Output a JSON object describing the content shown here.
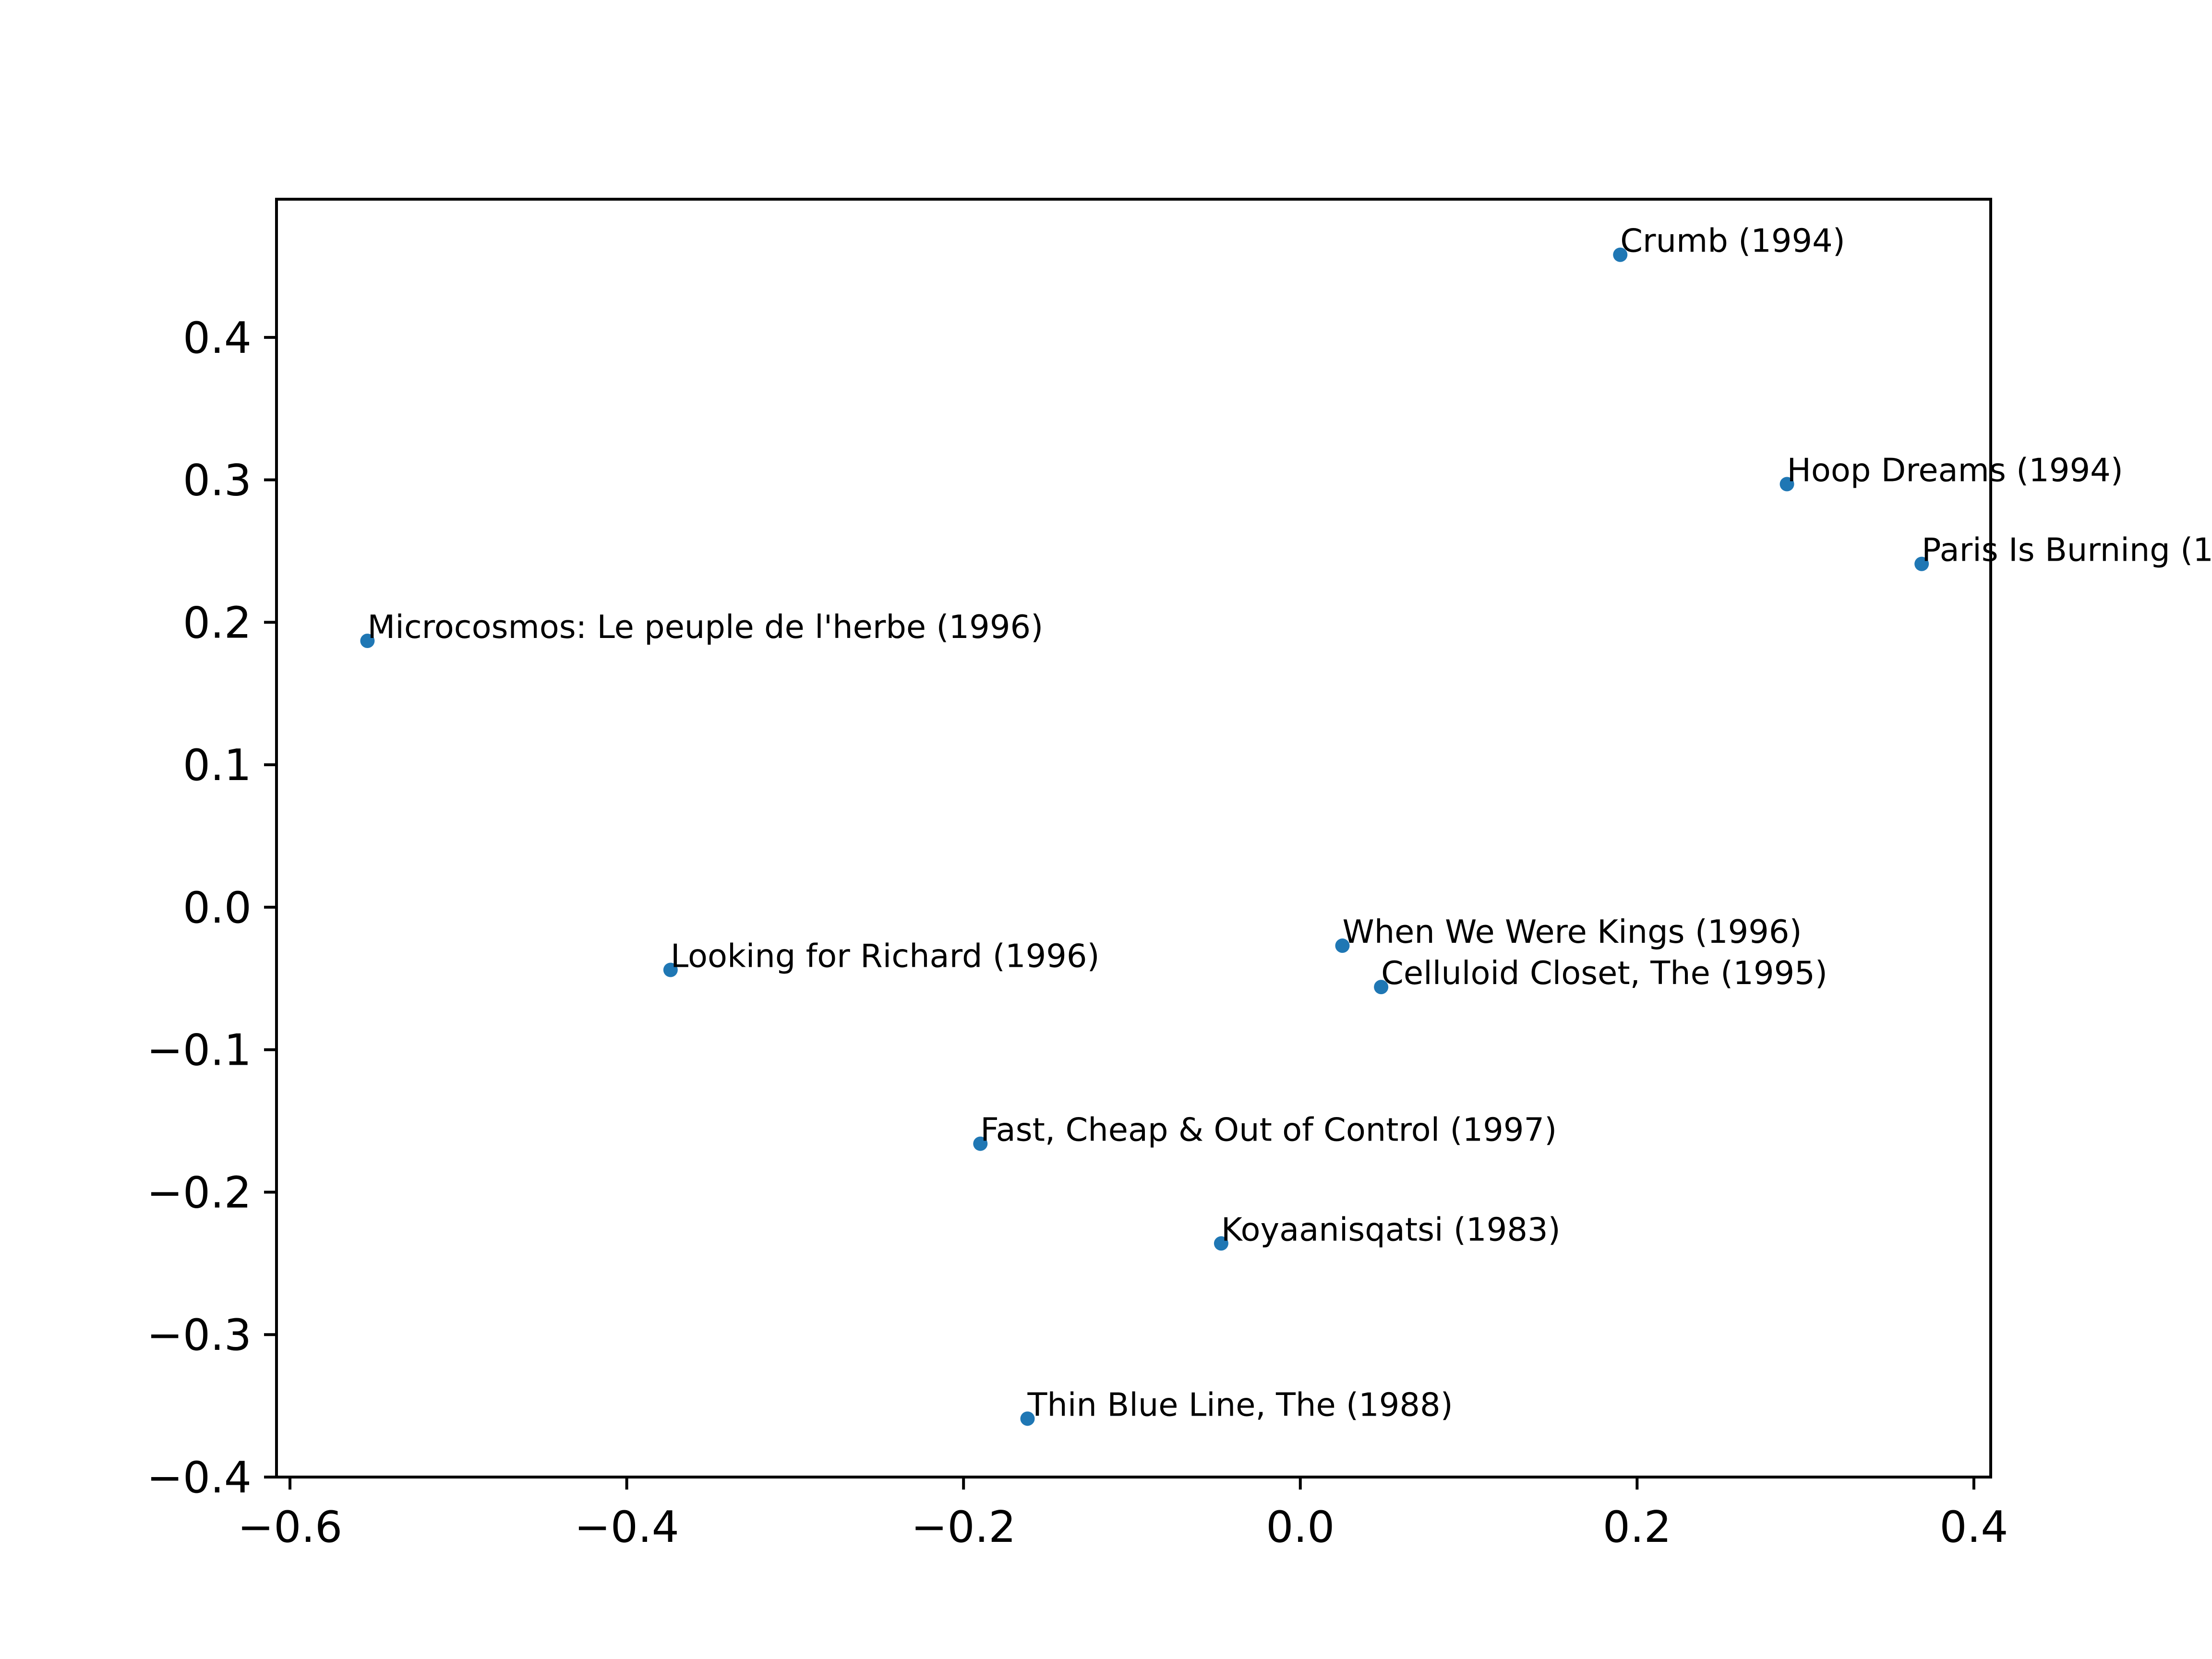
{
  "chart_data": {
    "type": "scatter",
    "title": "",
    "xlabel": "",
    "ylabel": "",
    "xlim": [
      -0.608,
      0.41
    ],
    "ylim": [
      -0.4,
      0.497
    ],
    "xticks": [
      -0.6,
      -0.4,
      -0.2,
      0.0,
      0.2,
      0.4
    ],
    "xtick_labels": [
      "−0.6",
      "−0.4",
      "−0.2",
      "0.0",
      "0.2",
      "0.4"
    ],
    "yticks": [
      -0.4,
      -0.3,
      -0.2,
      -0.1,
      0.0,
      0.1,
      0.2,
      0.3,
      0.4
    ],
    "ytick_labels": [
      "−0.4",
      "−0.3",
      "−0.2",
      "−0.1",
      "0.0",
      "0.1",
      "0.2",
      "0.3",
      "0.4"
    ],
    "grid": false,
    "point_color": "#1f77b4",
    "points": [
      {
        "label": "Crumb (1994)",
        "x": 0.19,
        "y": 0.458
      },
      {
        "label": "Hoop Dreams (1994)",
        "x": 0.289,
        "y": 0.297
      },
      {
        "label": "Paris Is Burning (1",
        "x": 0.369,
        "y": 0.241
      },
      {
        "label": "Microcosmos: Le peuple de l'herbe (1996)",
        "x": -0.554,
        "y": 0.187
      },
      {
        "label": "When We Were Kings (1996)",
        "x": 0.025,
        "y": -0.027
      },
      {
        "label": "Celluloid Closet, The (1995)",
        "x": 0.048,
        "y": -0.056
      },
      {
        "label": "Looking for Richard (1996)",
        "x": -0.374,
        "y": -0.044
      },
      {
        "label": "Fast, Cheap & Out of Control (1997)",
        "x": -0.19,
        "y": -0.166
      },
      {
        "label": "Koyaanisqatsi (1983)",
        "x": -0.047,
        "y": -0.236
      },
      {
        "label": "Thin Blue Line, The (1988)",
        "x": -0.162,
        "y": -0.359
      }
    ]
  }
}
